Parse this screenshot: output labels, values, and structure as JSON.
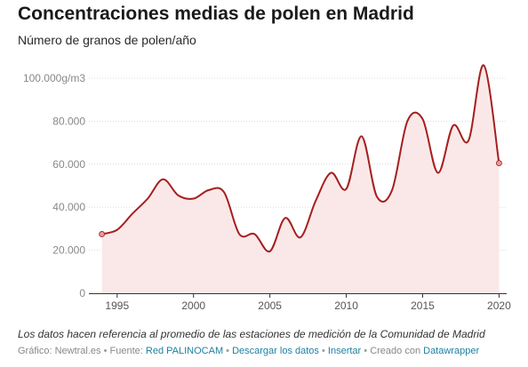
{
  "header": {
    "title": "Concentraciones medias de polen en Madrid",
    "subtitle": "Número de granos de polen/año"
  },
  "chart_data": {
    "type": "area",
    "title": "Concentraciones medias de polen en Madrid",
    "subtitle": "Número de granos de polen/año",
    "xlabel": "",
    "ylabel": "",
    "xlim": [
      1993.5,
      2020.5
    ],
    "ylim": [
      0,
      100000
    ],
    "y_ticks": [
      {
        "value": 0,
        "label": "0"
      },
      {
        "value": 20000,
        "label": "20.000"
      },
      {
        "value": 40000,
        "label": "40.000"
      },
      {
        "value": 60000,
        "label": "60.000"
      },
      {
        "value": 80000,
        "label": "80.000"
      },
      {
        "value": 100000,
        "label": "100.000g/m3"
      }
    ],
    "x_ticks": [
      {
        "value": 1995,
        "label": "1995"
      },
      {
        "value": 2000,
        "label": "2000"
      },
      {
        "value": 2005,
        "label": "2005"
      },
      {
        "value": 2010,
        "label": "2010"
      },
      {
        "value": 2015,
        "label": "2015"
      },
      {
        "value": 2020,
        "label": "2020"
      }
    ],
    "grid": true,
    "series": [
      {
        "x": [
          1994,
          1995,
          1996,
          1997,
          1998,
          1999,
          2000,
          2001,
          2002,
          2003,
          2004,
          2005,
          2006,
          2007,
          2008,
          2009,
          2010,
          2011,
          2012,
          2013,
          2014,
          2015,
          2016,
          2017,
          2018,
          2019,
          2020
        ],
        "y": [
          27500,
          29500,
          37000,
          44000,
          53000,
          45500,
          44000,
          48000,
          47000,
          27500,
          27500,
          19500,
          35000,
          26000,
          43000,
          56000,
          48500,
          73000,
          45000,
          48000,
          80000,
          81000,
          56000,
          78000,
          71000,
          106000,
          60500
        ]
      }
    ],
    "highlight_points": [
      {
        "x": 1994,
        "y": 27500
      },
      {
        "x": 2020,
        "y": 60500
      }
    ],
    "colors": {
      "line": "#a51e1e",
      "area": "#fae8e8",
      "grid": "#dcdcdc",
      "axis": "#333333",
      "tick_label": "#888888",
      "point": "#e49a99"
    }
  },
  "footer": {
    "note": "Los datos hacen referencia al promedio de las estaciones de medición de la Comunidad de Madrid",
    "credit_label": "Gráfico: Newtral.es",
    "source_prefix": "Fuente:",
    "source_link": "Red PALINOCAM",
    "download_link": "Descargar los datos",
    "embed_link": "Insertar",
    "created_prefix": "Creado con",
    "created_link": "Datawrapper",
    "separator": "•"
  }
}
